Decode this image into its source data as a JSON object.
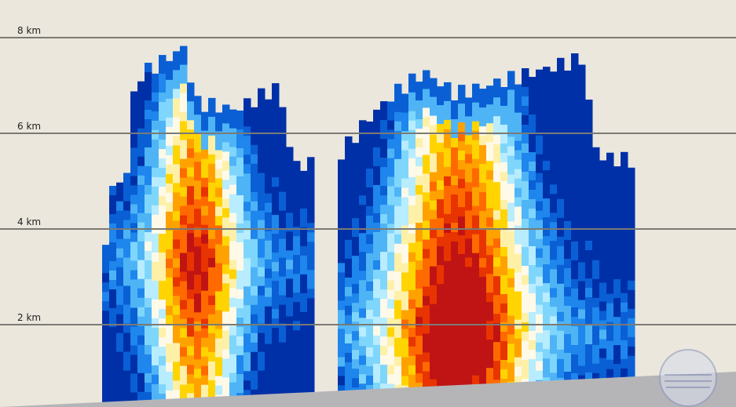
{
  "axis_labels": [
    "8 km",
    "6 km",
    "4 km",
    "2 km"
  ]
}
